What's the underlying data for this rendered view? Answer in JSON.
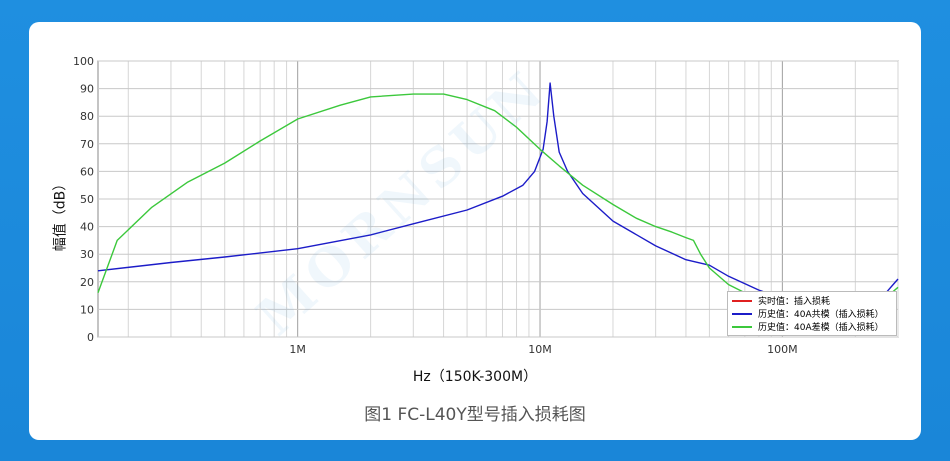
{
  "caption": "图1 FC-L40Y型号插入损耗图",
  "watermark": "MORNSUN",
  "chart_data": {
    "type": "line",
    "title": "",
    "xlabel": "Hz（150K-300M）",
    "ylabel": "幅值（dB）",
    "x_scale": "log",
    "xlim": [
      150000,
      300000000
    ],
    "ylim": [
      0,
      100
    ],
    "y_ticks": [
      0,
      10,
      20,
      30,
      40,
      50,
      60,
      70,
      80,
      90,
      100
    ],
    "x_tick_labels": [
      {
        "value": 1000000,
        "label": "1M"
      },
      {
        "value": 10000000,
        "label": "10M"
      },
      {
        "value": 100000000,
        "label": "100M"
      }
    ],
    "grid": true,
    "legend_position": "bottom-right",
    "colors": {
      "realtime": "#e02020",
      "common": "#1c1cc8",
      "diff": "#3cc83c"
    },
    "series": [
      {
        "name": "实时值：插入损耗",
        "color": "#e02020",
        "x": [],
        "y": []
      },
      {
        "name": "历史值：40A共模（插入损耗）",
        "color": "#1c1cc8",
        "x": [
          150000,
          300000,
          500000,
          1000000,
          2000000,
          3000000,
          5000000,
          7000000,
          8500000,
          9500000,
          10300000,
          10700000,
          11000000,
          11400000,
          12000000,
          13000000,
          15000000,
          20000000,
          30000000,
          40000000,
          50000000,
          60000000,
          80000000,
          100000000,
          130000000,
          160000000,
          200000000,
          250000000,
          300000000
        ],
        "y": [
          24,
          27,
          29,
          32,
          37,
          41,
          46,
          51,
          55,
          60,
          68,
          78,
          92,
          80,
          67,
          60,
          52,
          42,
          33,
          28,
          26,
          22,
          17,
          14,
          13,
          12,
          11,
          13,
          21
        ]
      },
      {
        "name": "历史值：40A差模（插入损耗）",
        "color": "#3cc83c",
        "x": [
          150000,
          180000,
          250000,
          350000,
          500000,
          700000,
          1000000,
          1500000,
          2000000,
          3000000,
          4000000,
          5000000,
          6500000,
          8000000,
          10000000,
          12000000,
          15000000,
          20000000,
          25000000,
          30000000,
          35000000,
          40000000,
          43000000,
          46000000,
          50000000,
          60000000,
          70000000,
          80000000,
          100000000,
          130000000,
          160000000,
          200000000,
          250000000,
          300000000
        ],
        "y": [
          16,
          35,
          47,
          56,
          63,
          71,
          79,
          84,
          87,
          88,
          88,
          86,
          82,
          76,
          68,
          62,
          55,
          48,
          43,
          40,
          38,
          36,
          35,
          30,
          25,
          19,
          16,
          14,
          12,
          11,
          10,
          10,
          12,
          18
        ]
      }
    ]
  }
}
